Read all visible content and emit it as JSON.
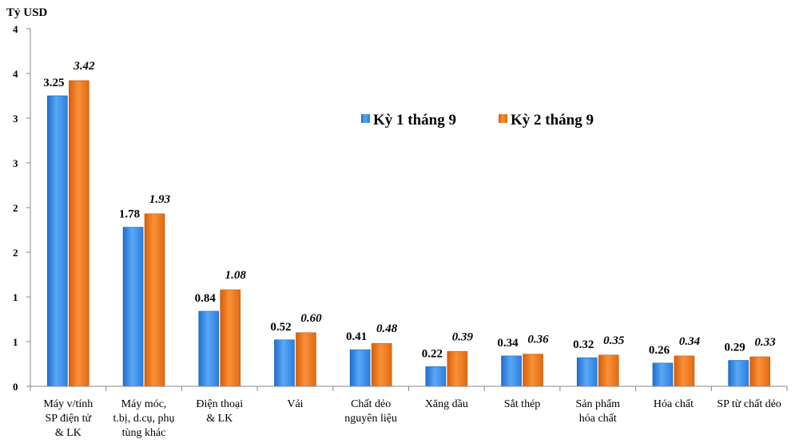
{
  "chart_data": {
    "type": "bar",
    "title": "",
    "ylabel": "Tỷ USD",
    "xlabel": "",
    "ylim": [
      0,
      4
    ],
    "y_tick_labels": [
      "0",
      "1",
      "1",
      "2",
      "2",
      "3",
      "3",
      "4",
      "4"
    ],
    "grid": false,
    "legend_position": "top-right",
    "categories": [
      "Máy v/tính SP điện tử & LK",
      "Máy móc, t.bị, d.cụ, phụ tùng khác",
      "Điện thoại & LK",
      "Vải",
      "Chất dẻo nguyên liệu",
      "Xăng dầu",
      "Sắt thép",
      "Sản phẩm hóa chất",
      "Hóa chất",
      "SP từ chất dẻo"
    ],
    "category_lines": [
      [
        "Máy v/tính",
        "SP điện tử",
        "& LK"
      ],
      [
        "Máy móc,",
        "t.bị, d.cụ, phụ",
        "tùng khác"
      ],
      [
        "Điện thoại",
        "& LK"
      ],
      [
        "Vải"
      ],
      [
        "Chất dẻo",
        "nguyên liệu"
      ],
      [
        "Xăng dầu"
      ],
      [
        "Sắt thép"
      ],
      [
        "Sản phẩm",
        "hóa chất"
      ],
      [
        "Hóa chất"
      ],
      [
        "SP từ chất dẻo"
      ]
    ],
    "series": [
      {
        "name": "Kỳ 1 tháng 9",
        "color": "#3a8fe8",
        "values": [
          3.25,
          1.78,
          0.84,
          0.52,
          0.41,
          0.22,
          0.34,
          0.32,
          0.26,
          0.29
        ],
        "labels": [
          "3.25",
          "1.78",
          "0.84",
          "0.52",
          "0.41",
          "0.22",
          "0.34",
          "0.32",
          "0.26",
          "0.29"
        ]
      },
      {
        "name": "Kỳ 2 tháng 9",
        "color": "#f07818",
        "values": [
          3.42,
          1.93,
          1.08,
          0.6,
          0.48,
          0.39,
          0.36,
          0.35,
          0.34,
          0.33
        ],
        "labels": [
          "3.42",
          "1.93",
          "1.08",
          "0.60",
          "0.48",
          "0.39",
          "0.36",
          "0.35",
          "0.34",
          "0.33"
        ]
      }
    ]
  }
}
